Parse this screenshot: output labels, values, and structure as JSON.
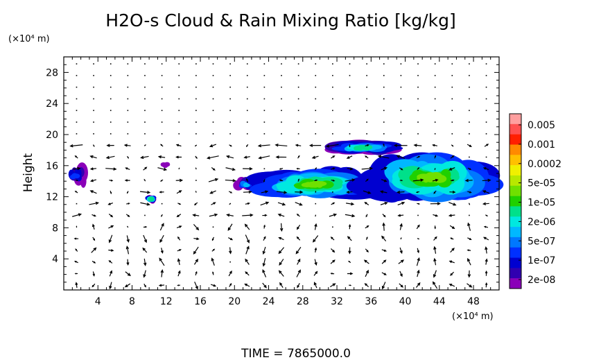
{
  "chart_data": {
    "type": "heatmap",
    "title": "H2O-s Cloud & Rain Mixing Ratio [kg/kg]",
    "ylabel": "Height",
    "y_unit": "(×10⁴ m)",
    "x_unit": "(×10⁴ m)",
    "xlim": [
      0,
      51
    ],
    "ylim": [
      0,
      30
    ],
    "x_ticks": [
      4,
      8,
      12,
      16,
      20,
      24,
      28,
      32,
      36,
      40,
      44,
      48
    ],
    "y_ticks": [
      4,
      8,
      12,
      16,
      20,
      24,
      28
    ],
    "colorbar": {
      "labels": [
        "0.005",
        "0.001",
        "0.0002",
        "5e-05",
        "1e-05",
        "2e-06",
        "5e-07",
        "1e-07",
        "2e-08"
      ],
      "colors": [
        "#ff9f9f",
        "#ff5050",
        "#ff1f00",
        "#ff8a00",
        "#ffc000",
        "#f0f000",
        "#b8e800",
        "#70e000",
        "#20d000",
        "#00e08a",
        "#00e8e0",
        "#00b8ff",
        "#0078ff",
        "#0030ff",
        "#0000d0",
        "#3000b0",
        "#8a00b8"
      ]
    },
    "cloud_regions": [
      {
        "x": [
          0,
          2.8
        ],
        "y": [
          13.2,
          16.2
        ],
        "peak": "1e-07"
      },
      {
        "x": [
          9.6,
          10.8
        ],
        "y": [
          11.2,
          12.2
        ],
        "peak": "2e-06"
      },
      {
        "x": [
          11.6,
          12.2
        ],
        "y": [
          15.6,
          16.4
        ],
        "peak": "2e-08"
      },
      {
        "x": [
          20,
          22.6
        ],
        "y": [
          12.6,
          14.6
        ],
        "peak": "5e-07"
      },
      {
        "x": [
          22.6,
          36
        ],
        "y": [
          11.6,
          15.6
        ],
        "peak": "5e-05"
      },
      {
        "x": [
          30,
          40
        ],
        "y": [
          17.4,
          19.2
        ],
        "peak": "2e-06"
      },
      {
        "x": [
          35.6,
          50.6
        ],
        "y": [
          11.2,
          17.6
        ],
        "peak": "5e-05"
      }
    ],
    "footer": "TIME = 7865000.0"
  },
  "colors": {
    "frame": "#000000",
    "background": "#ffffff"
  }
}
